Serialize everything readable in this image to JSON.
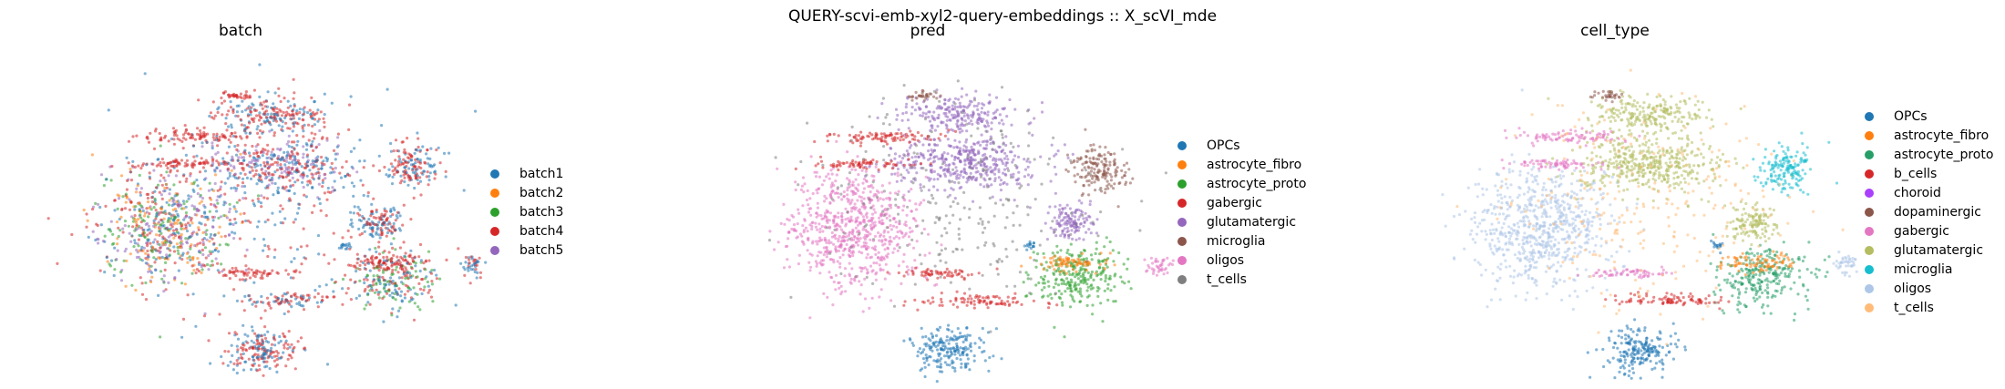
{
  "suptitle": "QUERY-scvi-emb-xyl2-query-embeddings :: X_scVI_mde",
  "chart_data": [
    {
      "type": "scatter",
      "title": "batch",
      "legend_position": "right",
      "categories": [
        {
          "name": "batch1",
          "color": "#1f77b4"
        },
        {
          "name": "batch2",
          "color": "#ff7f0e"
        },
        {
          "name": "batch3",
          "color": "#2ca02c"
        },
        {
          "name": "batch4",
          "color": "#d62728"
        },
        {
          "name": "batch5",
          "color": "#9467bd"
        }
      ]
    },
    {
      "type": "scatter",
      "title": "pred",
      "legend_position": "right",
      "categories": [
        {
          "name": "OPCs",
          "color": "#1f77b4"
        },
        {
          "name": "astrocyte_fibro",
          "color": "#ff7f0e"
        },
        {
          "name": "astrocyte_proto",
          "color": "#2ca02c"
        },
        {
          "name": "gabergic",
          "color": "#d62728"
        },
        {
          "name": "glutamatergic",
          "color": "#9467bd"
        },
        {
          "name": "microglia",
          "color": "#8c564b"
        },
        {
          "name": "oligos",
          "color": "#e377c2"
        },
        {
          "name": "t_cells",
          "color": "#7f7f7f"
        }
      ]
    },
    {
      "type": "scatter",
      "title": "cell_type",
      "legend_position": "right",
      "categories": [
        {
          "name": "OPCs",
          "color": "#1f77b4"
        },
        {
          "name": "astrocyte_fibro",
          "color": "#ff7f0e"
        },
        {
          "name": "astrocyte_proto",
          "color": "#279e68"
        },
        {
          "name": "b_cells",
          "color": "#d62728"
        },
        {
          "name": "choroid",
          "color": "#aa40fc"
        },
        {
          "name": "dopaminergic",
          "color": "#8c564b"
        },
        {
          "name": "gabergic",
          "color": "#e377c2"
        },
        {
          "name": "glutamatergic",
          "color": "#b5bd61"
        },
        {
          "name": "microglia",
          "color": "#17becf"
        },
        {
          "name": "oligos",
          "color": "#aec7e8"
        },
        {
          "name": "t_cells",
          "color": "#ffbb78"
        }
      ]
    }
  ]
}
